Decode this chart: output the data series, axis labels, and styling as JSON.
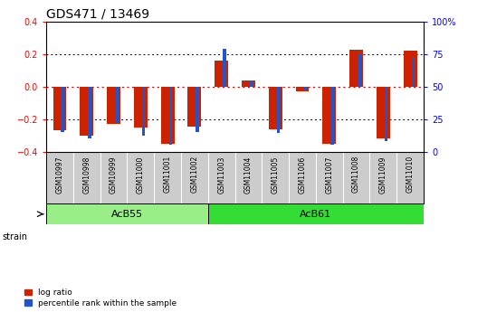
{
  "title": "GDS471 / 13469",
  "samples": [
    "GSM10997",
    "GSM10998",
    "GSM10999",
    "GSM11000",
    "GSM11001",
    "GSM11002",
    "GSM11003",
    "GSM11004",
    "GSM11005",
    "GSM11006",
    "GSM11007",
    "GSM11008",
    "GSM11009",
    "GSM11010"
  ],
  "log_ratio": [
    -0.27,
    -0.3,
    -0.23,
    -0.25,
    -0.35,
    -0.245,
    0.16,
    0.04,
    -0.265,
    -0.03,
    -0.35,
    0.23,
    -0.32,
    0.22
  ],
  "percentile_rank": [
    15,
    10,
    22,
    12,
    5,
    15,
    79,
    55,
    14,
    47,
    5,
    75,
    8,
    73
  ],
  "groups": [
    {
      "label": "AcB55",
      "start": 0,
      "end": 5,
      "color": "#99ee88"
    },
    {
      "label": "AcB61",
      "start": 6,
      "end": 13,
      "color": "#33dd33"
    }
  ],
  "ylim_left": [
    -0.4,
    0.4
  ],
  "ylim_right": [
    0,
    100
  ],
  "yticks_left": [
    -0.4,
    -0.2,
    0.0,
    0.2,
    0.4
  ],
  "yticks_right": [
    0,
    25,
    50,
    75,
    100
  ],
  "ytick_labels_right": [
    "0",
    "25",
    "50",
    "75",
    "100%"
  ],
  "bar_color_red": "#cc2200",
  "bar_color_blue": "#2255cc",
  "dotted_line_color": "#000000",
  "zero_line_color": "#dd0000",
  "bg_color": "#ffffff",
  "plot_bg_color": "#ffffff",
  "xlabels_bg_color": "#cccccc",
  "title_fontsize": 10,
  "tick_fontsize": 7,
  "sample_label_fontsize": 5.5,
  "group_label_fontsize": 8,
  "legend_fontsize": 6.5,
  "bar_width": 0.5,
  "blue_bar_width": 0.12
}
